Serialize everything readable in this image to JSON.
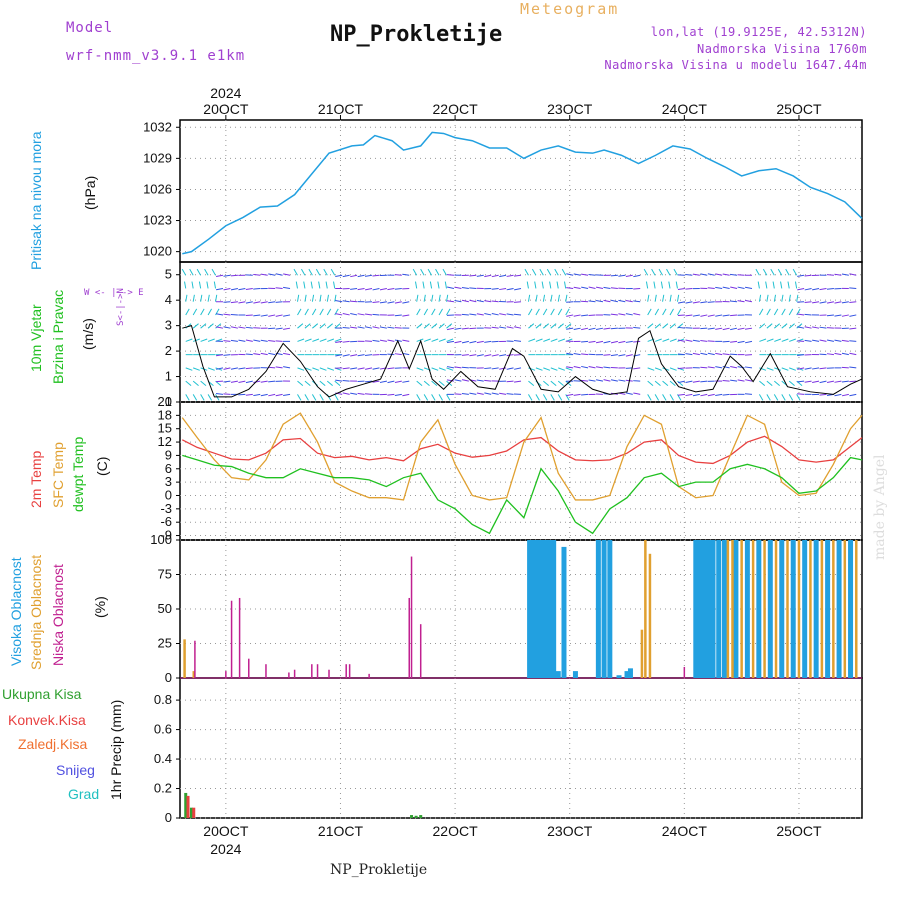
{
  "header": {
    "model_label": "Model",
    "model_name": "wrf-nmm_v3.9.1 e1km",
    "meteogram_label": "Meteogram",
    "station": "NP_Prokletije",
    "lonlat": "lon,lat (19.9125E, 42.5312N)",
    "altitude": "Nadmorska Visina 1760m",
    "altitude_model": "Nadmorska Visina u modelu 1647.44m"
  },
  "footer": {
    "station": "NP_Prokletije",
    "credit": "made by Angel"
  },
  "colors": {
    "pressure": "#22a0e0",
    "temp2m": "#e84040",
    "sfc_temp": "#e0a030",
    "dewpt": "#20c020",
    "high_cloud": "#22a0e0",
    "mid_cloud": "#e0a030",
    "low_cloud": "#c02090",
    "total_precip": "#30a030",
    "conv_precip": "#e84040",
    "frozen_precip": "#f07030",
    "snow": "#5050e0",
    "graupel": "#20c0c0",
    "label_purple": "#a040d0"
  },
  "axes": {
    "year": "2024",
    "days": [
      "20OCT",
      "21OCT",
      "22OCT",
      "23OCT",
      "24OCT",
      "25OCT"
    ],
    "x_range_days": [
      19.6,
      25.55
    ]
  },
  "panels": {
    "pressure": {
      "label": "Pritisak na nivou mora",
      "unit": "(hPa)",
      "ticks": [
        "1020",
        "1023",
        "1026",
        "1029",
        "1032"
      ]
    },
    "wind": {
      "label_line1": "10m Vjetar",
      "label_line2": "Brzina i Pravac",
      "unit": "(m/s)",
      "compass": "W <- | -> E",
      "compass_vert": "S<-|->N",
      "ticks": [
        "0",
        "1",
        "2",
        "3",
        "4",
        "5"
      ]
    },
    "temp": {
      "label1": "2m Temp",
      "label2": "SFC Temp",
      "label3": "dewpt Temp",
      "unit": "(C)",
      "ticks": [
        "-9",
        "-6",
        "-3",
        "0",
        "3",
        "6",
        "9",
        "12",
        "15",
        "18",
        "21"
      ]
    },
    "cloud": {
      "label1": "Visoka Oblacnost",
      "label2": "Srednja Oblacnost",
      "label3": "Niska Oblacnost",
      "unit": "(%)",
      "ticks": [
        "0",
        "25",
        "50",
        "75",
        "100"
      ]
    },
    "precip": {
      "legend": [
        "Ukupna Kisa",
        "Konvek.Kisa",
        "Zaledj.Kisa",
        "Snijeg",
        "Grad"
      ],
      "unit": "1hr Precip (mm)",
      "ticks": [
        "0",
        "0.2",
        "0.4",
        "0.6",
        "0.8"
      ]
    }
  },
  "chart_data": [
    {
      "type": "line",
      "title": "Pritisak na nivou mora",
      "ylabel": "(hPa)",
      "ylim": [
        1019,
        1032.7
      ],
      "x_days": [
        19.62,
        19.7,
        19.85,
        20.0,
        20.15,
        20.3,
        20.45,
        20.6,
        20.75,
        20.9,
        21.1,
        21.2,
        21.3,
        21.45,
        21.55,
        21.7,
        21.8,
        21.9,
        22.0,
        22.15,
        22.3,
        22.45,
        22.6,
        22.75,
        22.9,
        23.05,
        23.2,
        23.3,
        23.45,
        23.6,
        23.75,
        23.9,
        24.05,
        24.2,
        24.35,
        24.5,
        24.65,
        24.8,
        24.95,
        25.1,
        25.25,
        25.4,
        25.55
      ],
      "series": [
        {
          "values": [
            1019.8,
            1020.0,
            1021.2,
            1022.5,
            1023.3,
            1024.3,
            1024.4,
            1025.5,
            1027.5,
            1029.5,
            1030.2,
            1030.3,
            1031.2,
            1030.7,
            1029.8,
            1030.2,
            1031.5,
            1031.4,
            1031.0,
            1030.7,
            1030.0,
            1030.0,
            1029.0,
            1029.8,
            1030.2,
            1029.6,
            1029.5,
            1029.8,
            1029.3,
            1028.5,
            1029.3,
            1030.2,
            1029.9,
            1029.0,
            1028.2,
            1027.3,
            1027.8,
            1028.0,
            1027.3,
            1026.2,
            1025.6,
            1024.8,
            1023.2
          ]
        }
      ]
    },
    {
      "type": "line",
      "title": "10m Vjetar Brzina i Pravac",
      "ylabel": "(m/s)",
      "ylim": [
        0,
        5.5
      ],
      "x_days": [
        19.62,
        19.7,
        19.8,
        19.9,
        20.05,
        20.2,
        20.35,
        20.5,
        20.65,
        20.8,
        20.9,
        21.05,
        21.2,
        21.35,
        21.5,
        21.6,
        21.7,
        21.8,
        21.9,
        22.05,
        22.2,
        22.35,
        22.5,
        22.6,
        22.75,
        22.9,
        23.05,
        23.2,
        23.35,
        23.5,
        23.6,
        23.7,
        23.8,
        23.95,
        24.1,
        24.25,
        24.4,
        24.5,
        24.6,
        24.75,
        24.9,
        25.1,
        25.3,
        25.45,
        25.55
      ],
      "series": [
        {
          "values": [
            2.9,
            3.0,
            1.4,
            0.2,
            0.2,
            0.5,
            1.2,
            2.3,
            1.6,
            0.6,
            0.2,
            0.5,
            0.7,
            0.9,
            2.4,
            1.3,
            2.4,
            0.9,
            0.5,
            1.2,
            0.6,
            0.5,
            2.1,
            1.8,
            0.5,
            0.4,
            1.0,
            0.5,
            0.3,
            0.4,
            2.5,
            2.8,
            1.5,
            0.6,
            0.4,
            0.5,
            1.8,
            1.4,
            0.8,
            1.9,
            0.6,
            0.4,
            0.3,
            0.7,
            0.9
          ]
        }
      ]
    },
    {
      "type": "line",
      "title": "Temperatura",
      "ylabel": "(C)",
      "ylim": [
        -10,
        21
      ],
      "x_days": [
        19.62,
        19.75,
        19.9,
        20.05,
        20.2,
        20.35,
        20.5,
        20.65,
        20.8,
        20.95,
        21.1,
        21.25,
        21.4,
        21.55,
        21.7,
        21.85,
        22.0,
        22.15,
        22.3,
        22.45,
        22.6,
        22.75,
        22.9,
        23.05,
        23.2,
        23.35,
        23.5,
        23.65,
        23.8,
        23.95,
        24.1,
        24.25,
        24.4,
        24.55,
        24.7,
        24.85,
        25.0,
        25.15,
        25.3,
        25.45,
        25.55
      ],
      "series": [
        {
          "name": "2m Temp",
          "values": [
            12.5,
            10.8,
            9.5,
            8.2,
            8.0,
            9.5,
            12.5,
            12.8,
            9.5,
            8.5,
            8.8,
            8.0,
            8.5,
            7.8,
            10.5,
            11.5,
            9.5,
            8.6,
            9.0,
            10.0,
            12.5,
            13.0,
            10.0,
            8.0,
            7.8,
            8.0,
            9.5,
            12.0,
            12.5,
            9.0,
            7.5,
            7.2,
            9.0,
            12.0,
            13.3,
            11.0,
            8.0,
            7.5,
            8.0,
            11.0,
            13.0
          ]
        },
        {
          "name": "SFC Temp",
          "values": [
            17.5,
            13.0,
            8.0,
            4.0,
            3.5,
            8.0,
            16.0,
            18.5,
            12.0,
            3.0,
            1.0,
            -0.5,
            -0.5,
            -1.0,
            12.0,
            17.0,
            7.0,
            0.0,
            -1.0,
            -0.5,
            12.0,
            17.5,
            5.0,
            -1.0,
            -1.0,
            0.0,
            11.0,
            18.0,
            16.0,
            2.0,
            -0.5,
            0.0,
            9.0,
            18.0,
            16.0,
            3.0,
            0.0,
            0.5,
            7.0,
            15.0,
            18.0
          ]
        },
        {
          "name": "dewpt Temp",
          "values": [
            9.0,
            8.0,
            6.8,
            6.5,
            5.0,
            4.0,
            4.0,
            6.0,
            5.0,
            4.0,
            4.0,
            3.5,
            2.0,
            4.0,
            5.0,
            -1.0,
            -3.0,
            -6.5,
            -8.5,
            -1.0,
            -5.0,
            6.0,
            1.0,
            -6.0,
            -8.5,
            -3.0,
            -0.5,
            4.0,
            5.0,
            2.0,
            3.0,
            3.0,
            6.0,
            7.0,
            6.0,
            4.0,
            0.5,
            1.0,
            4.0,
            8.5,
            8.0
          ]
        }
      ]
    },
    {
      "type": "bar",
      "title": "Oblacnost",
      "ylabel": "(%)",
      "ylim": [
        0,
        100
      ],
      "series": [
        {
          "name": "Visoka Oblacnost",
          "x_days": [
            22.65,
            22.68,
            22.71,
            22.74,
            22.77,
            22.8,
            22.83,
            22.86,
            22.9,
            22.95,
            23.05,
            23.25,
            23.3,
            23.35,
            23.43,
            23.5,
            23.53,
            24.1,
            24.13,
            24.17,
            24.21,
            24.25,
            24.3,
            24.35,
            24.45,
            24.55,
            24.65,
            24.75,
            24.85,
            24.95,
            25.05,
            25.15,
            25.25,
            25.35,
            25.45
          ],
          "values": [
            100,
            100,
            100,
            100,
            100,
            100,
            100,
            100,
            5,
            95,
            5,
            100,
            100,
            100,
            2,
            5,
            7,
            100,
            100,
            100,
            100,
            100,
            100,
            100,
            100,
            100,
            100,
            100,
            100,
            100,
            100,
            100,
            100,
            100,
            100
          ]
        },
        {
          "name": "Srednja Oblacnost",
          "x_days": [
            19.64,
            19.72,
            23.63,
            23.66,
            23.7,
            24.38,
            24.42,
            24.5,
            24.6,
            24.7,
            24.8,
            24.9,
            25.0,
            25.1,
            25.2,
            25.3,
            25.4,
            25.5
          ],
          "values": [
            28,
            5,
            35,
            100,
            90,
            100,
            100,
            100,
            100,
            100,
            100,
            100,
            100,
            100,
            100,
            100,
            100,
            100
          ]
        },
        {
          "name": "Niska Oblacnost",
          "x_days": [
            19.73,
            20.0,
            20.05,
            20.12,
            20.2,
            20.35,
            20.55,
            20.6,
            20.75,
            20.8,
            20.9,
            21.05,
            21.08,
            21.25,
            21.6,
            21.62,
            21.7,
            24.0
          ],
          "values": [
            27,
            5,
            56,
            58,
            14,
            10,
            4,
            6,
            10,
            10,
            6,
            10,
            10,
            3,
            58,
            88,
            39,
            8
          ]
        }
      ]
    },
    {
      "type": "bar",
      "title": "1hr Precip",
      "ylabel": "(mm)",
      "ylim": [
        0,
        0.95
      ],
      "series": [
        {
          "name": "Ukupna Kisa",
          "x_days": [
            19.65,
            19.7,
            21.62,
            21.66,
            21.7
          ],
          "values": [
            0.17,
            0.07,
            0.02,
            0.015,
            0.02
          ]
        },
        {
          "name": "Konvek.Kisa",
          "x_days": [
            19.67,
            19.72
          ],
          "values": [
            0.15,
            0.07
          ]
        }
      ]
    }
  ]
}
